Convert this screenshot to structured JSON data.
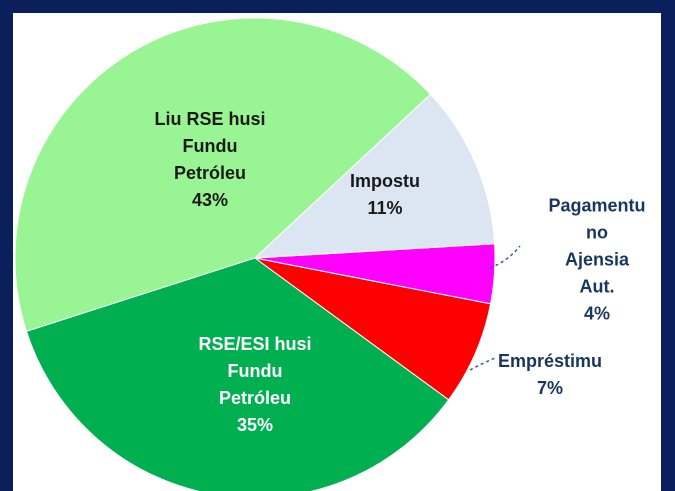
{
  "chart_data": {
    "type": "pie",
    "categories": [
      "Impostu",
      "Pagamentu no\nAjensia Aut.",
      "Empréstimu",
      "RSE/ESI husi\nFundu\nPetróleu",
      "Liu RSE husi\nFundu\nPetróleu"
    ],
    "values": [
      11,
      4,
      7,
      35,
      43
    ],
    "value_labels": [
      "11%",
      "4%",
      "7%",
      "35%",
      "43%"
    ],
    "colors": [
      "#dce6f2",
      "#ff00ff",
      "#ff0000",
      "#00b050",
      "#99f593"
    ]
  }
}
